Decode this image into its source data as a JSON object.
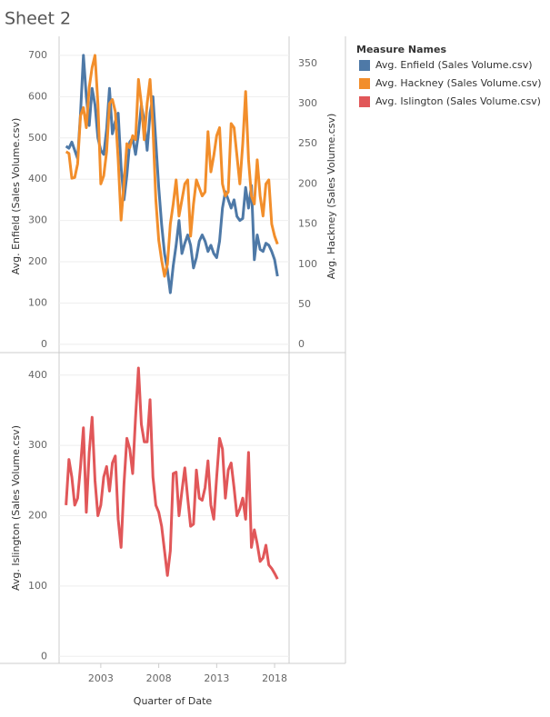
{
  "chart_data": {
    "type": "line",
    "title": "Sheet 2",
    "legend_title": "Measure Names",
    "xlabel": "Quarter of Date",
    "x": [
      2000,
      2000.25,
      2000.5,
      2000.75,
      2001,
      2001.25,
      2001.5,
      2001.75,
      2002,
      2002.25,
      2002.5,
      2002.75,
      2003,
      2003.25,
      2003.5,
      2003.75,
      2004,
      2004.25,
      2004.5,
      2004.75,
      2005,
      2005.25,
      2005.5,
      2005.75,
      2006,
      2006.25,
      2006.5,
      2006.75,
      2007,
      2007.25,
      2007.5,
      2007.75,
      2008,
      2008.25,
      2008.5,
      2008.75,
      2009,
      2009.25,
      2009.5,
      2009.75,
      2010,
      2010.25,
      2010.5,
      2010.75,
      2011,
      2011.25,
      2011.5,
      2011.75,
      2012,
      2012.25,
      2012.5,
      2012.75,
      2013,
      2013.25,
      2013.5,
      2013.75,
      2014,
      2014.25,
      2014.5,
      2014.75,
      2015,
      2015.25,
      2015.5,
      2015.75,
      2016,
      2016.25,
      2016.5,
      2016.75,
      2017,
      2017.25,
      2017.5,
      2017.75,
      2018,
      2018.25
    ],
    "xlim": [
      1999.4,
      2019.25
    ],
    "xticks": [
      2003,
      2008,
      2013,
      2018
    ],
    "ylabel": "Avg. Enfield (Sales Volume.csv)",
    "ylim": [
      -20,
      735
    ],
    "yticks": [
      0,
      100,
      200,
      300,
      400,
      500,
      600,
      700
    ],
    "y2label": "Avg. Hackney (Sales Volume.csv)",
    "y2lim": [
      -10,
      378
    ],
    "y2ticks": [
      0,
      50,
      100,
      150,
      200,
      250,
      300,
      350
    ],
    "y3label": "Avg. Islington (Sales Volume.csv)",
    "y3lim": [
      -10,
      432
    ],
    "y3ticks": [
      0,
      100,
      200,
      300,
      400
    ],
    "grid": true,
    "series": [
      {
        "name": "Avg. Enfield (Sales Volume.csv)",
        "color": "#4e79a7",
        "axis": "y",
        "values": [
          480,
          475,
          490,
          470,
          450,
          560,
          700,
          600,
          530,
          620,
          580,
          500,
          470,
          460,
          520,
          620,
          510,
          540,
          560,
          430,
          350,
          410,
          490,
          500,
          460,
          510,
          580,
          540,
          470,
          560,
          600,
          490,
          380,
          290,
          220,
          180,
          125,
          190,
          240,
          300,
          220,
          245,
          265,
          240,
          185,
          210,
          250,
          265,
          250,
          225,
          240,
          220,
          210,
          250,
          330,
          370,
          350,
          330,
          350,
          310,
          300,
          305,
          380,
          330,
          385,
          205,
          265,
          230,
          225,
          245,
          240,
          225,
          205,
          165
        ]
      },
      {
        "name": "Avg. Hackney (Sales Volume.csv)",
        "color": "#f28e2b",
        "axis": "y2",
        "values": [
          240,
          238,
          207,
          208,
          225,
          285,
          295,
          270,
          320,
          345,
          360,
          300,
          200,
          210,
          240,
          300,
          305,
          290,
          230,
          155,
          200,
          250,
          245,
          260,
          255,
          330,
          300,
          255,
          300,
          330,
          270,
          180,
          130,
          105,
          85,
          100,
          150,
          175,
          205,
          160,
          180,
          200,
          205,
          135,
          175,
          205,
          195,
          185,
          190,
          265,
          215,
          235,
          260,
          270,
          200,
          185,
          190,
          275,
          270,
          235,
          200,
          250,
          315,
          230,
          185,
          175,
          230,
          185,
          160,
          200,
          205,
          150,
          135,
          125
        ]
      },
      {
        "name": "Avg. Islington (Sales Volume.csv)",
        "color": "#e15759",
        "axis": "y3",
        "values": [
          215,
          280,
          255,
          215,
          225,
          270,
          325,
          205,
          290,
          340,
          250,
          200,
          215,
          255,
          270,
          235,
          275,
          285,
          195,
          155,
          245,
          310,
          295,
          260,
          340,
          410,
          330,
          305,
          305,
          365,
          255,
          215,
          205,
          185,
          150,
          115,
          150,
          260,
          262,
          200,
          235,
          268,
          225,
          185,
          188,
          265,
          225,
          222,
          240,
          278,
          215,
          195,
          255,
          310,
          295,
          225,
          265,
          275,
          240,
          200,
          210,
          225,
          195,
          290,
          155,
          180,
          160,
          135,
          140,
          158,
          130,
          125,
          118,
          110
        ]
      }
    ]
  }
}
